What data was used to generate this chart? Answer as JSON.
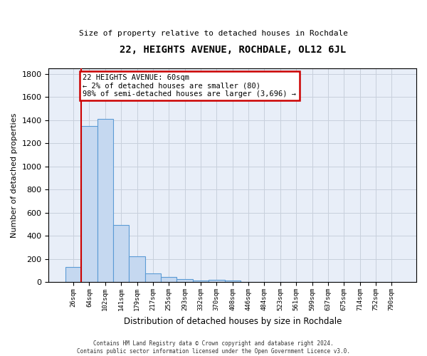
{
  "title": "22, HEIGHTS AVENUE, ROCHDALE, OL12 6JL",
  "subtitle": "Size of property relative to detached houses in Rochdale",
  "xlabel": "Distribution of detached houses by size in Rochdale",
  "ylabel": "Number of detached properties",
  "bar_color": "#c5d8f0",
  "bar_edge_color": "#5b9bd5",
  "grid_color": "#c8d0dc",
  "background_color": "#e8eef8",
  "categories": [
    "26sqm",
    "64sqm",
    "102sqm",
    "141sqm",
    "179sqm",
    "217sqm",
    "255sqm",
    "293sqm",
    "332sqm",
    "370sqm",
    "408sqm",
    "446sqm",
    "484sqm",
    "523sqm",
    "561sqm",
    "599sqm",
    "637sqm",
    "675sqm",
    "714sqm",
    "752sqm",
    "790sqm"
  ],
  "values": [
    130,
    1350,
    1410,
    495,
    225,
    75,
    45,
    25,
    15,
    20,
    15,
    0,
    0,
    0,
    0,
    0,
    0,
    0,
    0,
    0,
    0
  ],
  "ylim": [
    0,
    1850
  ],
  "yticks": [
    0,
    200,
    400,
    600,
    800,
    1000,
    1200,
    1400,
    1600,
    1800
  ],
  "red_line_x": 0.5,
  "annotation_text": "22 HEIGHTS AVENUE: 60sqm\n← 2% of detached houses are smaller (80)\n98% of semi-detached houses are larger (3,696) →",
  "annotation_box_color": "#ffffff",
  "annotation_border_color": "#cc0000",
  "footer_line1": "Contains HM Land Registry data © Crown copyright and database right 2024.",
  "footer_line2": "Contains public sector information licensed under the Open Government Licence v3.0."
}
